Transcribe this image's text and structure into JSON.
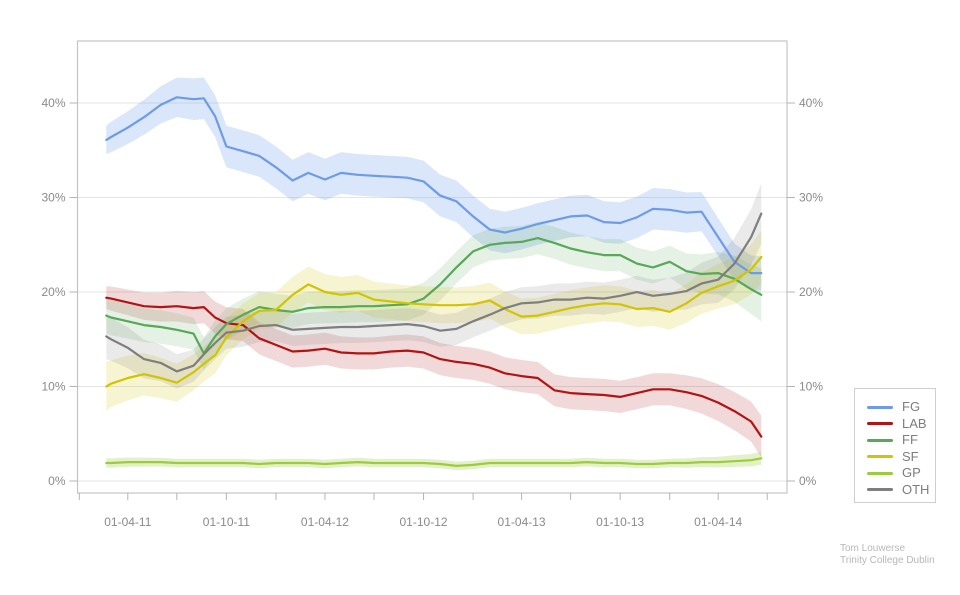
{
  "attribution": {
    "line1": "Tom Louwerse",
    "line2": "Trinity College Dublin"
  },
  "chart_data": {
    "type": "line",
    "title": "",
    "x_type": "date",
    "grid": true,
    "legend_position": "outside-right-bottom",
    "y_axis": {
      "min": 0,
      "max": 45.5,
      "mirrored": true,
      "ticks": [
        {
          "value": 0,
          "label": "0%"
        },
        {
          "value": 10,
          "label": "10%"
        },
        {
          "value": 20,
          "label": "20%"
        },
        {
          "value": 30,
          "label": "30%"
        },
        {
          "value": 40,
          "label": "40%"
        }
      ]
    },
    "x_axis": {
      "ticks": [
        {
          "date": "2011-01-01",
          "label": ""
        },
        {
          "date": "2011-04-01",
          "label": "01-04-11"
        },
        {
          "date": "2011-07-01",
          "label": ""
        },
        {
          "date": "2011-10-01",
          "label": "01-10-11"
        },
        {
          "date": "2012-01-01",
          "label": ""
        },
        {
          "date": "2012-04-01",
          "label": "01-04-12"
        },
        {
          "date": "2012-07-01",
          "label": ""
        },
        {
          "date": "2012-10-01",
          "label": "01-10-12"
        },
        {
          "date": "2013-01-01",
          "label": ""
        },
        {
          "date": "2013-04-01",
          "label": "01-04-13"
        },
        {
          "date": "2013-07-01",
          "label": ""
        },
        {
          "date": "2013-10-01",
          "label": "01-10-13"
        },
        {
          "date": "2014-01-01",
          "label": ""
        },
        {
          "date": "2014-04-01",
          "label": "01-04-14"
        },
        {
          "date": "2014-07-01",
          "label": ""
        }
      ]
    },
    "dates": [
      "2011-02-20",
      "2011-03-01",
      "2011-04-01",
      "2011-05-01",
      "2011-06-01",
      "2011-07-01",
      "2011-08-01",
      "2011-08-20",
      "2011-09-10",
      "2011-10-01",
      "2011-11-01",
      "2011-12-01",
      "2012-01-01",
      "2012-02-01",
      "2012-03-01",
      "2012-04-01",
      "2012-05-01",
      "2012-06-01",
      "2012-07-01",
      "2012-08-01",
      "2012-09-01",
      "2012-10-01",
      "2012-11-01",
      "2012-12-01",
      "2013-01-01",
      "2013-02-01",
      "2013-03-01",
      "2013-04-01",
      "2013-05-01",
      "2013-06-01",
      "2013-07-01",
      "2013-08-01",
      "2013-09-01",
      "2013-10-01",
      "2013-11-01",
      "2013-12-01",
      "2014-01-01",
      "2014-02-01",
      "2014-03-01",
      "2014-04-01",
      "2014-05-01",
      "2014-06-01",
      "2014-06-20"
    ],
    "series": [
      {
        "name": "FG",
        "color": "#6D9BE8",
        "band_opacity": 0.25,
        "band_start": 1.5,
        "band": 2.2,
        "band_end": 1.8,
        "values": [
          36.1,
          36.4,
          37.4,
          38.5,
          39.8,
          40.6,
          40.4,
          40.5,
          38.6,
          35.4,
          34.9,
          34.4,
          33.2,
          31.8,
          32.6,
          31.9,
          32.6,
          32.4,
          32.3,
          32.2,
          32.1,
          31.7,
          30.2,
          29.6,
          28.0,
          26.6,
          26.3,
          26.7,
          27.2,
          27.6,
          28.0,
          28.1,
          27.4,
          27.3,
          27.9,
          28.8,
          28.7,
          28.4,
          28.5,
          25.8,
          23.2,
          22.0,
          22.0
        ]
      },
      {
        "name": "LAB",
        "color": "#B11414",
        "band_opacity": 0.16,
        "band_start": 1.2,
        "band": 1.7,
        "band_end": 2.2,
        "values": [
          19.4,
          19.3,
          18.9,
          18.5,
          18.4,
          18.5,
          18.3,
          18.4,
          17.3,
          16.7,
          16.5,
          15.1,
          14.4,
          13.7,
          13.8,
          14.0,
          13.6,
          13.5,
          13.5,
          13.7,
          13.8,
          13.6,
          12.9,
          12.6,
          12.4,
          12.0,
          11.4,
          11.1,
          10.9,
          9.6,
          9.3,
          9.2,
          9.1,
          8.9,
          9.3,
          9.7,
          9.7,
          9.4,
          9.0,
          8.3,
          7.4,
          6.3,
          4.7
        ]
      },
      {
        "name": "FF",
        "color": "#57A857",
        "band_opacity": 0.16,
        "band_start": 1.9,
        "band": 1.7,
        "band_end": 2.8,
        "values": [
          17.5,
          17.3,
          16.9,
          16.5,
          16.3,
          16.0,
          15.6,
          13.5,
          15.3,
          16.6,
          17.6,
          18.4,
          18.1,
          17.9,
          18.3,
          18.4,
          18.4,
          18.5,
          18.5,
          18.6,
          18.7,
          19.3,
          20.8,
          22.6,
          24.3,
          25.0,
          25.2,
          25.3,
          25.7,
          25.2,
          24.6,
          24.2,
          23.9,
          23.9,
          23.0,
          22.6,
          23.2,
          22.2,
          21.9,
          22.0,
          21.4,
          20.3,
          19.7
        ]
      },
      {
        "name": "SF",
        "color": "#D1C400",
        "band_opacity": 0.18,
        "band_start": 2.6,
        "band": 1.9,
        "band_end": 2.8,
        "values": [
          10.0,
          10.3,
          10.9,
          11.3,
          10.9,
          10.4,
          11.5,
          12.4,
          13.3,
          15.2,
          16.9,
          18.0,
          18.1,
          19.7,
          20.8,
          20.0,
          19.7,
          19.9,
          19.2,
          19.0,
          18.8,
          18.7,
          18.6,
          18.6,
          18.7,
          19.1,
          18.2,
          17.4,
          17.5,
          17.9,
          18.3,
          18.6,
          18.8,
          18.7,
          18.2,
          18.3,
          17.9,
          18.8,
          19.9,
          20.6,
          21.2,
          22.4,
          23.7
        ]
      },
      {
        "name": "GP",
        "color": "#9CCB3E",
        "band_opacity": 0.28,
        "band_start": 0.5,
        "band": 0.45,
        "band_end": 0.7,
        "values": [
          1.9,
          1.9,
          2.0,
          2.0,
          2.0,
          1.9,
          1.9,
          1.9,
          1.9,
          1.9,
          1.9,
          1.8,
          1.9,
          1.9,
          1.9,
          1.8,
          1.9,
          2.0,
          1.9,
          1.9,
          1.9,
          1.9,
          1.8,
          1.6,
          1.7,
          1.9,
          1.9,
          1.9,
          1.9,
          1.9,
          1.9,
          2.0,
          1.9,
          1.9,
          1.8,
          1.8,
          1.9,
          1.9,
          2.0,
          2.0,
          2.1,
          2.2,
          2.4
        ]
      },
      {
        "name": "OTH",
        "color": "#7E7E7E",
        "band_opacity": 0.16,
        "band_start": 2.4,
        "band": 1.7,
        "band_end": 3.2,
        "values": [
          15.3,
          15.0,
          14.1,
          12.9,
          12.5,
          11.6,
          12.2,
          13.4,
          14.6,
          15.7,
          15.9,
          16.4,
          16.5,
          16.0,
          16.1,
          16.2,
          16.3,
          16.3,
          16.4,
          16.5,
          16.6,
          16.4,
          15.9,
          16.1,
          16.9,
          17.6,
          18.3,
          18.8,
          18.9,
          19.2,
          19.2,
          19.4,
          19.3,
          19.6,
          20.0,
          19.6,
          19.8,
          20.1,
          20.9,
          21.3,
          23.0,
          25.8,
          28.3
        ]
      }
    ]
  }
}
